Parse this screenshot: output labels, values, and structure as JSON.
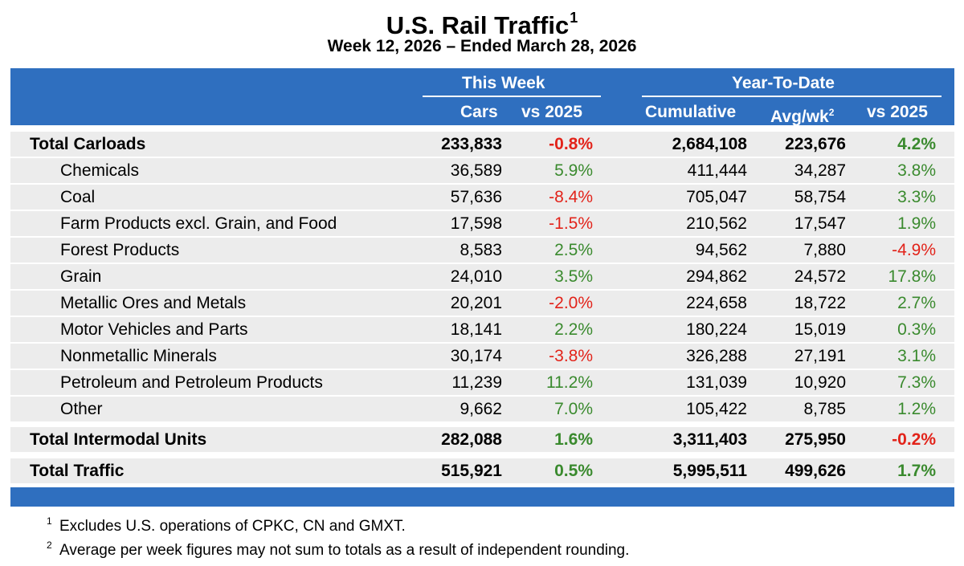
{
  "title": "U.S. Rail Traffic",
  "title_sup": "1",
  "subtitle": "Week 12, 2026 – Ended March 28, 2026",
  "header": {
    "this_week": "This Week",
    "ytd": "Year-To-Date",
    "cars": "Cars",
    "vs2025": "vs 2025",
    "cumulative": "Cumulative",
    "avgwk": "Avg/wk",
    "avgwk_sup": "2",
    "vs2025_ytd": "vs 2025"
  },
  "rows": [
    {
      "label": "Total Carloads",
      "cars": "233,833",
      "vs": "-0.8%",
      "cum": "2,684,108",
      "avg": "223,676",
      "vsytd": "4.2%"
    },
    {
      "label": "Chemicals",
      "cars": "36,589",
      "vs": "5.9%",
      "cum": "411,444",
      "avg": "34,287",
      "vsytd": "3.8%"
    },
    {
      "label": "Coal",
      "cars": "57,636",
      "vs": "-8.4%",
      "cum": "705,047",
      "avg": "58,754",
      "vsytd": "3.3%"
    },
    {
      "label": "Farm Products excl. Grain, and Food",
      "cars": "17,598",
      "vs": "-1.5%",
      "cum": "210,562",
      "avg": "17,547",
      "vsytd": "1.9%"
    },
    {
      "label": "Forest Products",
      "cars": "8,583",
      "vs": "2.5%",
      "cum": "94,562",
      "avg": "7,880",
      "vsytd": "-4.9%"
    },
    {
      "label": "Grain",
      "cars": "24,010",
      "vs": "3.5%",
      "cum": "294,862",
      "avg": "24,572",
      "vsytd": "17.8%"
    },
    {
      "label": "Metallic Ores and Metals",
      "cars": "20,201",
      "vs": "-2.0%",
      "cum": "224,658",
      "avg": "18,722",
      "vsytd": "2.7%"
    },
    {
      "label": "Motor Vehicles and Parts",
      "cars": "18,141",
      "vs": "2.2%",
      "cum": "180,224",
      "avg": "15,019",
      "vsytd": "0.3%"
    },
    {
      "label": "Nonmetallic Minerals",
      "cars": "30,174",
      "vs": "-3.8%",
      "cum": "326,288",
      "avg": "27,191",
      "vsytd": "3.1%"
    },
    {
      "label": "Petroleum and Petroleum Products",
      "cars": "11,239",
      "vs": "11.2%",
      "cum": "131,039",
      "avg": "10,920",
      "vsytd": "7.3%"
    },
    {
      "label": "Other",
      "cars": "9,662",
      "vs": "7.0%",
      "cum": "105,422",
      "avg": "8,785",
      "vsytd": "1.2%"
    },
    {
      "label": "Total Intermodal Units",
      "cars": "282,088",
      "vs": "1.6%",
      "cum": "3,311,403",
      "avg": "275,950",
      "vsytd": "-0.2%"
    },
    {
      "label": "Total Traffic",
      "cars": "515,921",
      "vs": "0.5%",
      "cum": "5,995,511",
      "avg": "499,626",
      "vsytd": "1.7%"
    }
  ],
  "footnotes": [
    {
      "mark": "1",
      "text": "Excludes U.S. operations of CPKC, CN and GMXT."
    },
    {
      "mark": "2",
      "text": "Average per week figures may not sum to totals as a result of independent rounding."
    }
  ],
  "colors": {
    "header_blue": "#2f6fbf",
    "positive": "#3a8a2e",
    "negative": "#e2231a",
    "row_bg": "#ececec"
  }
}
